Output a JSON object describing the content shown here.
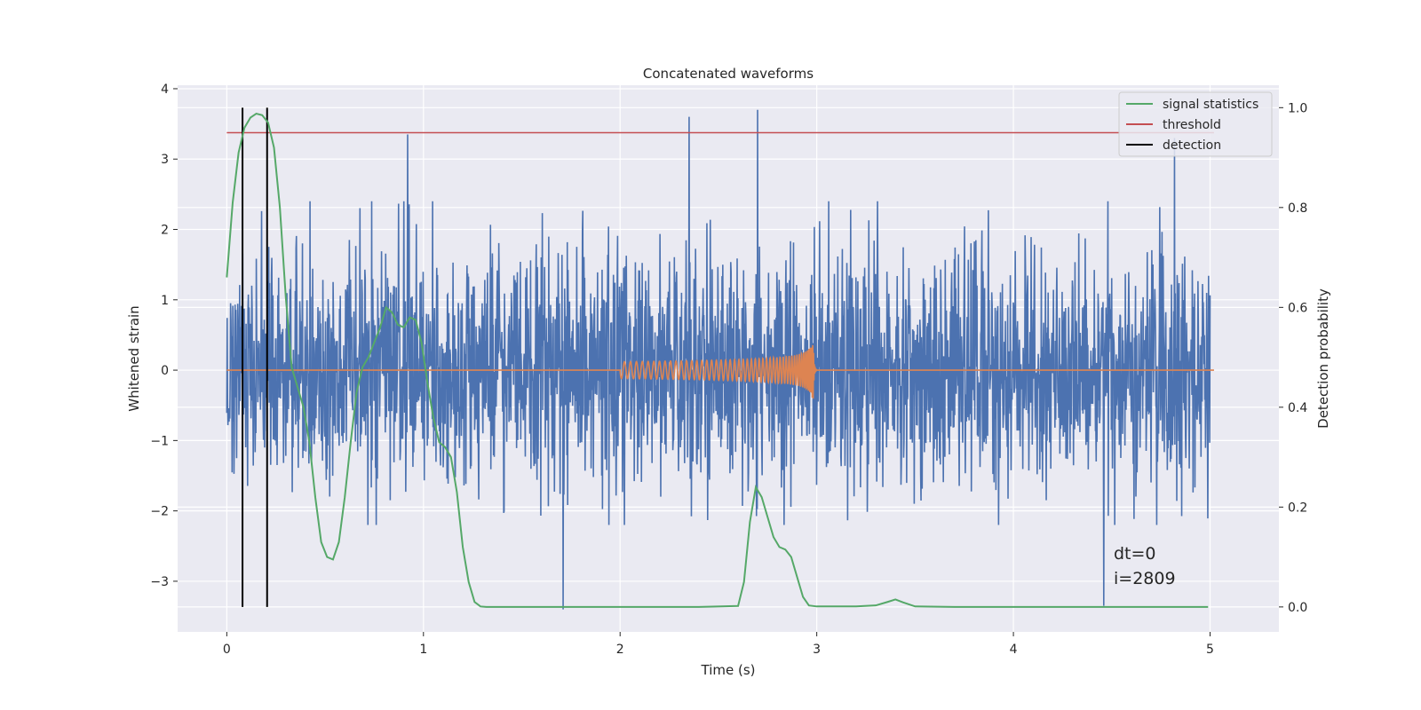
{
  "chart_data": {
    "type": "line",
    "title": "Concatenated waveforms",
    "xlabel": "Time (s)",
    "ylabel": "Whitened strain",
    "ylabel_right": "Detection probability",
    "xlim": [
      -0.25,
      5.35
    ],
    "ylim": [
      -3.72,
      4.05
    ],
    "ylim_right": [
      -0.05,
      1.045
    ],
    "x_ticks": [
      0,
      1,
      2,
      3,
      4,
      5
    ],
    "y_ticks": [
      -3,
      -2,
      -1,
      0,
      1,
      2,
      3,
      4
    ],
    "y_ticks_right": [
      0.0,
      0.2,
      0.4,
      0.6,
      0.8,
      1.0
    ],
    "x_tick_labels": [
      "0",
      "1",
      "2",
      "3",
      "4",
      "5"
    ],
    "y_tick_labels": [
      "−3",
      "−2",
      "−1",
      "0",
      "1",
      "2",
      "3",
      "4"
    ],
    "y_tick_labels_right": [
      "0.0",
      "0.2",
      "0.4",
      "0.6",
      "0.8",
      "1.0"
    ],
    "grid": true,
    "legend_position": "top-right",
    "legend": [
      "signal statistics",
      "threshold",
      "detection"
    ],
    "colors": {
      "strain": "#4c72b0",
      "template": "#dd8452",
      "signal_statistics": "#55a868",
      "threshold": "#c44e52",
      "detection": "#000000",
      "background": "#eaeaf2",
      "grid": "#ffffff"
    },
    "series": [
      {
        "name": "signal statistics",
        "axis": "right",
        "x": [
          0,
          0.03,
          0.06,
          0.09,
          0.12,
          0.15,
          0.18,
          0.21,
          0.24,
          0.27,
          0.3,
          0.33,
          0.36,
          0.39,
          0.42,
          0.45,
          0.48,
          0.51,
          0.54,
          0.57,
          0.6,
          0.63,
          0.66,
          0.69,
          0.72,
          0.75,
          0.78,
          0.81,
          0.84,
          0.87,
          0.9,
          0.93,
          0.96,
          0.99,
          1.02,
          1.05,
          1.08,
          1.11,
          1.14,
          1.17,
          1.2,
          1.23,
          1.26,
          1.29,
          1.32,
          1.4,
          1.6,
          1.8,
          2.0,
          2.2,
          2.4,
          2.6,
          2.63,
          2.66,
          2.69,
          2.72,
          2.75,
          2.78,
          2.81,
          2.84,
          2.87,
          2.9,
          2.93,
          2.96,
          3.0,
          3.2,
          3.3,
          3.36,
          3.4,
          3.44,
          3.5,
          3.7,
          4.0,
          4.5,
          4.99
        ],
        "values": [
          0.66,
          0.81,
          0.91,
          0.96,
          0.98,
          0.988,
          0.985,
          0.97,
          0.92,
          0.8,
          0.62,
          0.48,
          0.44,
          0.4,
          0.33,
          0.22,
          0.13,
          0.1,
          0.095,
          0.13,
          0.22,
          0.33,
          0.43,
          0.48,
          0.5,
          0.53,
          0.56,
          0.6,
          0.59,
          0.565,
          0.56,
          0.58,
          0.575,
          0.53,
          0.45,
          0.38,
          0.33,
          0.32,
          0.3,
          0.23,
          0.12,
          0.05,
          0.01,
          0.001,
          0.0,
          0.0,
          0.0,
          0.0,
          0.0,
          0.0,
          0.0,
          0.002,
          0.05,
          0.17,
          0.24,
          0.22,
          0.18,
          0.14,
          0.12,
          0.115,
          0.1,
          0.06,
          0.02,
          0.003,
          0.001,
          0.001,
          0.003,
          0.01,
          0.015,
          0.009,
          0.001,
          0.0,
          0.0,
          0.0,
          0.0
        ]
      },
      {
        "name": "threshold",
        "axis": "right",
        "x": [
          0,
          5.02
        ],
        "values": [
          0.95,
          0.95
        ]
      },
      {
        "name": "detection",
        "axis": "right",
        "x": [
          0.08,
          0.205
        ],
        "values": [
          0.0,
          1.0
        ]
      }
    ],
    "strain_noise": {
      "axis": "left",
      "x_range": [
        0,
        5.0
      ],
      "typical_peak_range": [
        -2.2,
        2.4
      ],
      "largest_peaks": [
        {
          "x": 0.92,
          "y": 3.35
        },
        {
          "x": 2.35,
          "y": 3.6
        },
        {
          "x": 2.7,
          "y": 3.7
        },
        {
          "x": 4.82,
          "y": 3.3
        },
        {
          "x": 1.71,
          "y": -3.4
        },
        {
          "x": 4.46,
          "y": -3.35
        }
      ]
    },
    "template_chirp": {
      "axis": "left",
      "x_range": [
        2.0,
        3.0
      ],
      "peak_time": 2.98,
      "start_amplitude": 0.12,
      "peak_amplitude": 0.65
    }
  },
  "annotation": {
    "dt": "dt=0",
    "i": "i=2809"
  }
}
